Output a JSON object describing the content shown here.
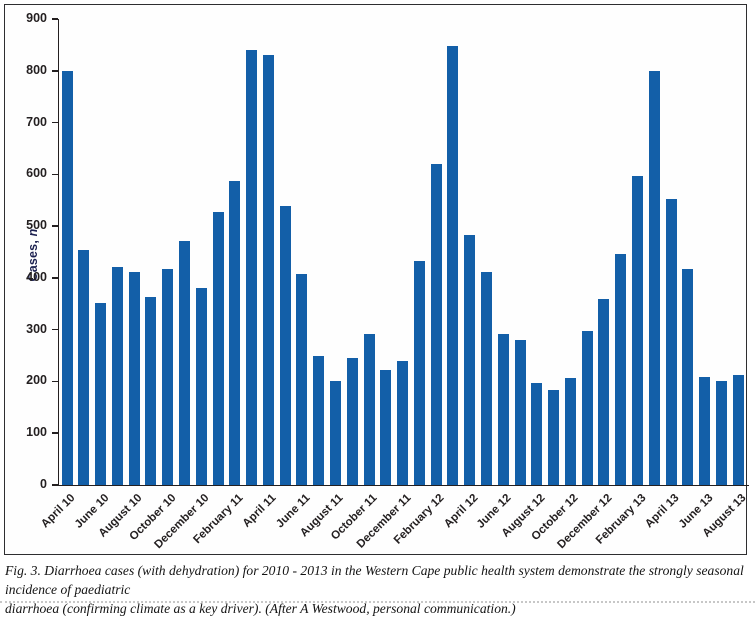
{
  "figure": {
    "ylabel_prefix": "Cases, ",
    "ylabel_italic": "n"
  },
  "chart_data": {
    "type": "bar",
    "title": "",
    "xlabel": "",
    "ylabel": "Cases, n",
    "ylim": [
      0,
      900
    ],
    "y_tick_step": 100,
    "y_ticks": [
      0,
      100,
      200,
      300,
      400,
      500,
      600,
      700,
      800,
      900
    ],
    "grid": false,
    "legend": false,
    "bar_color": "#135fa8",
    "axis_color": "#231f20",
    "categories": [
      "April 10",
      "May 10",
      "June 10",
      "July 10",
      "August 10",
      "September 10",
      "October 10",
      "November 10",
      "December 10",
      "January 11",
      "February 11",
      "March 11",
      "April 11",
      "May 11",
      "June 11",
      "July 11",
      "August 11",
      "September 11",
      "October 11",
      "November 11",
      "December 11",
      "January 12",
      "February 12",
      "March 12",
      "April 12",
      "May 12",
      "June 12",
      "July 12",
      "August 12",
      "September 12",
      "October 12",
      "November 12",
      "December 12",
      "January 13",
      "February 13",
      "March 13",
      "April 13",
      "May 13",
      "June 13",
      "July 13",
      "August 13"
    ],
    "values": [
      800,
      453,
      351,
      421,
      411,
      363,
      417,
      472,
      380,
      528,
      587,
      840,
      830,
      539,
      408,
      250,
      201,
      246,
      292,
      222,
      240,
      432,
      621,
      848,
      482,
      411,
      292,
      280,
      198,
      183,
      207,
      297,
      360,
      446,
      596,
      800,
      552,
      417,
      208,
      201,
      213
    ],
    "x_tick_labels": [
      "April 10",
      "June 10",
      "August 10",
      "October 10",
      "December 10",
      "February 11",
      "April 11",
      "June 11",
      "August 11",
      "October 11",
      "December 11",
      "February 12",
      "April 12",
      "June 12",
      "August 12",
      "October 12",
      "December 12",
      "February 13",
      "April 13",
      "June 13",
      "August 13"
    ]
  },
  "caption": {
    "line1": "Fig. 3. Diarrhoea cases (with dehydration) for 2010 - 2013 in the Western Cape public health system demonstrate the strongly seasonal incidence of paediatric",
    "line2": "diarrhoea (confirming climate as a key driver). (After A Westwood, personal communication.)"
  }
}
